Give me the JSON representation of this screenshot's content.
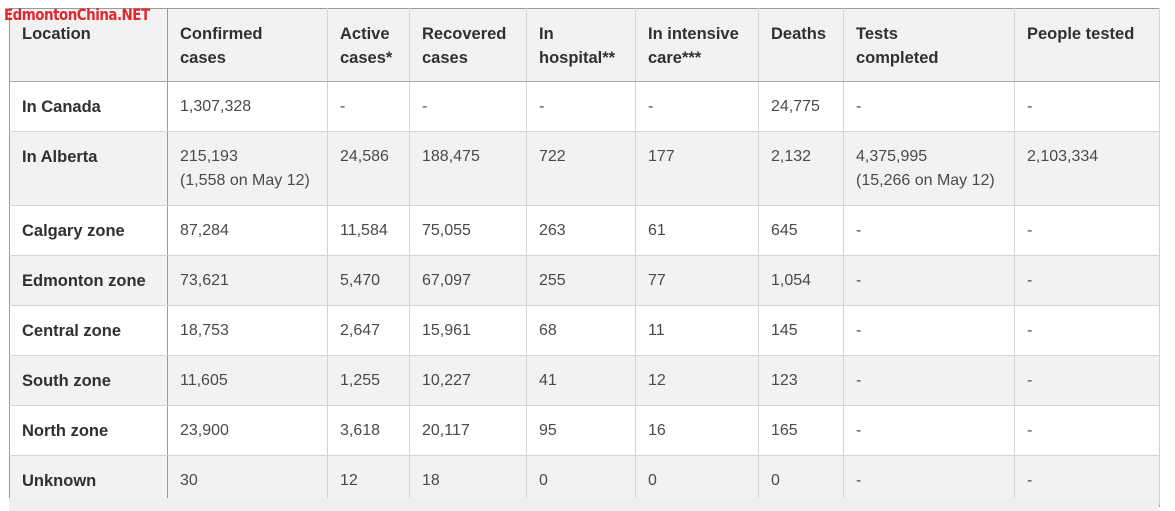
{
  "watermark": "EdmontonChina.NET",
  "table": {
    "headers": [
      [
        "Location",
        ""
      ],
      [
        "Confirmed",
        "cases"
      ],
      [
        "Active",
        "cases*"
      ],
      [
        "Recovered",
        "cases"
      ],
      [
        "In",
        "hospital**"
      ],
      [
        "In intensive",
        "care***"
      ],
      [
        "Deaths",
        ""
      ],
      [
        "Tests",
        "completed"
      ],
      [
        "People tested",
        ""
      ]
    ],
    "rows": [
      {
        "location": "In Canada",
        "confirmed": "1,307,328",
        "confirmed_sub": "",
        "active": "-",
        "recovered": "-",
        "hospital": "-",
        "icu": "-",
        "deaths": "24,775",
        "tests": "-",
        "tests_sub": "",
        "people": "-"
      },
      {
        "location": "In Alberta",
        "confirmed": "215,193",
        "confirmed_sub": "(1,558 on May 12)",
        "active": "24,586",
        "recovered": "188,475",
        "hospital": "722",
        "icu": "177",
        "deaths": "2,132",
        "tests": "4,375,995",
        "tests_sub": "(15,266 on May 12)",
        "people": "2,103,334"
      },
      {
        "location": "Calgary zone",
        "confirmed": "87,284",
        "confirmed_sub": "",
        "active": "11,584",
        "recovered": "75,055",
        "hospital": "263",
        "icu": "61",
        "deaths": "645",
        "tests": "-",
        "tests_sub": "",
        "people": "-"
      },
      {
        "location": "Edmonton zone",
        "confirmed": "73,621",
        "confirmed_sub": "",
        "active": "5,470",
        "recovered": "67,097",
        "hospital": "255",
        "icu": "77",
        "deaths": "1,054",
        "tests": "-",
        "tests_sub": "",
        "people": "-"
      },
      {
        "location": "Central zone",
        "confirmed": "18,753",
        "confirmed_sub": "",
        "active": "2,647",
        "recovered": "15,961",
        "hospital": "68",
        "icu": "11",
        "deaths": "145",
        "tests": "-",
        "tests_sub": "",
        "people": "-"
      },
      {
        "location": "South zone",
        "confirmed": "11,605",
        "confirmed_sub": "",
        "active": "1,255",
        "recovered": "10,227",
        "hospital": "41",
        "icu": "12",
        "deaths": "123",
        "tests": "-",
        "tests_sub": "",
        "people": "-"
      },
      {
        "location": "North zone",
        "confirmed": "23,900",
        "confirmed_sub": "",
        "active": "3,618",
        "recovered": "20,117",
        "hospital": "95",
        "icu": "16",
        "deaths": "165",
        "tests": "-",
        "tests_sub": "",
        "people": "-"
      },
      {
        "location": "Unknown",
        "confirmed": "30",
        "confirmed_sub": "",
        "active": "12",
        "recovered": "18",
        "hospital": "0",
        "icu": "0",
        "deaths": "0",
        "tests": "-",
        "tests_sub": "",
        "people": "-"
      }
    ]
  }
}
